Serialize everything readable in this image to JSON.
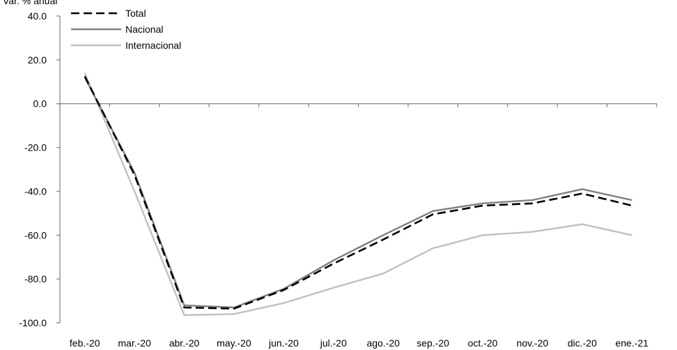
{
  "chart_data": {
    "type": "line",
    "ylabel": "Var. % anual",
    "xlabel": "",
    "categories": [
      "feb.-20",
      "mar.-20",
      "abr.-20",
      "may.-20",
      "jun.-20",
      "jul.-20",
      "ago.-20",
      "sep.-20",
      "oct.-20",
      "nov.-20",
      "dic.-20",
      "ene.-21"
    ],
    "ylim": [
      -100,
      40
    ],
    "yticks": [
      40,
      20,
      0,
      -20,
      -40,
      -60,
      -80,
      -100
    ],
    "ytick_labels": [
      "40.0",
      "20.0",
      "0.0",
      "-20.0",
      "-40.0",
      "-60.0",
      "-80.0",
      "-100.0"
    ],
    "grid": false,
    "legend_position": "top-left",
    "series": [
      {
        "name": "Total",
        "color": "#000000",
        "dash": "dashed",
        "values": [
          12.5,
          -32.5,
          -93.0,
          -93.5,
          -85.0,
          -73.0,
          -62.0,
          -50.5,
          -46.5,
          -45.5,
          -41.0,
          -46.5
        ]
      },
      {
        "name": "Nacional",
        "color": "#7f7f7f",
        "dash": "solid",
        "values": [
          12.0,
          -31.5,
          -92.0,
          -93.0,
          -84.5,
          -71.5,
          -60.0,
          -49.0,
          -45.5,
          -44.0,
          -39.0,
          -44.0
        ]
      },
      {
        "name": "Internacional",
        "color": "#c0c0c0",
        "dash": "solid",
        "values": [
          14.0,
          -40.0,
          -96.5,
          -96.0,
          -91.0,
          -84.0,
          -77.5,
          -66.0,
          -60.0,
          -58.5,
          -55.0,
          -60.0
        ]
      }
    ]
  }
}
